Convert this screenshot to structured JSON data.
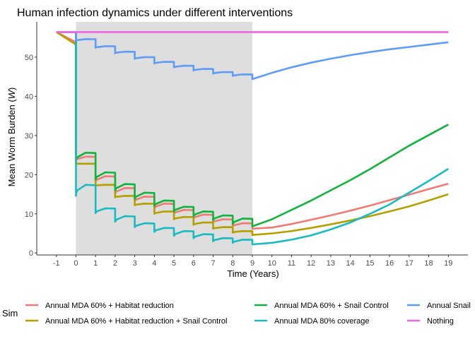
{
  "chart_data": {
    "type": "line",
    "title": "Human infection dynamics under different interventions",
    "xlabel": "Time (Years)",
    "ylabel": "Mean Worm Burden (W)",
    "ylabel_parts": {
      "prefix": "Mean Worm Burden (",
      "symbol": "W",
      "suffix": ")"
    },
    "xlim": [
      -2,
      20
    ],
    "ylim": [
      -0.5,
      59
    ],
    "x_ticks": [
      "-1",
      "0",
      "1",
      "2",
      "3",
      "4",
      "5",
      "6",
      "7",
      "8",
      "9",
      "10",
      "11",
      "12",
      "13",
      "14",
      "15",
      "16",
      "17",
      "18",
      "19"
    ],
    "y_ticks": [
      "0",
      "10",
      "20",
      "30",
      "40",
      "50"
    ],
    "shaded_region": {
      "x_start": 0,
      "x_end": 9,
      "color": "#dedede"
    },
    "grid": false,
    "legend_title": "Sim",
    "legend_position": "bottom",
    "baseline": 56.4,
    "series": [
      {
        "name": "Annual MDA 60% + Habitat reduction",
        "color": "#f07b72",
        "pre": [
          [
            -1,
            56.4
          ],
          [
            0,
            53.8
          ]
        ],
        "drop_to": 23.6,
        "yearly": [
          {
            "start": 23.6,
            "end": 24.6
          },
          {
            "start": 18.2,
            "end": 19.6
          },
          {
            "start": 15.2,
            "end": 16.6
          },
          {
            "start": 13.2,
            "end": 14.4
          },
          {
            "start": 11.4,
            "end": 12.6
          },
          {
            "start": 10.0,
            "end": 11.0
          },
          {
            "start": 8.8,
            "end": 9.8
          },
          {
            "start": 7.8,
            "end": 8.6
          },
          {
            "start": 6.8,
            "end": 7.6
          }
        ],
        "post": [
          [
            9,
            6.2
          ],
          [
            10,
            6.5
          ],
          [
            11,
            7.4
          ],
          [
            12,
            8.5
          ],
          [
            13,
            9.6
          ],
          [
            14,
            10.8
          ],
          [
            15,
            12.1
          ],
          [
            16,
            13.5
          ],
          [
            17,
            14.9
          ],
          [
            18,
            16.3
          ],
          [
            19,
            17.7
          ]
        ]
      },
      {
        "name": "Annual MDA 60% + Habitat reduction + Snail Control",
        "color": "#b5a000",
        "pre": [
          [
            -1,
            56.4
          ],
          [
            0,
            53.2
          ]
        ],
        "drop_to": 22.8,
        "yearly": [
          {
            "start": 22.8,
            "end": 22.8
          },
          {
            "start": 17.2,
            "end": 17.4
          },
          {
            "start": 14.2,
            "end": 14.6
          },
          {
            "start": 12.2,
            "end": 12.6
          },
          {
            "start": 10.0,
            "end": 10.6
          },
          {
            "start": 8.6,
            "end": 9.2
          },
          {
            "start": 7.2,
            "end": 7.8
          },
          {
            "start": 6.2,
            "end": 6.6
          },
          {
            "start": 5.2,
            "end": 5.6
          }
        ],
        "post": [
          [
            9,
            4.6
          ],
          [
            10,
            5.0
          ],
          [
            11,
            5.6
          ],
          [
            12,
            6.4
          ],
          [
            13,
            7.3
          ],
          [
            14,
            8.3
          ],
          [
            15,
            9.4
          ],
          [
            16,
            10.6
          ],
          [
            17,
            11.9
          ],
          [
            18,
            13.4
          ],
          [
            19,
            15.0
          ]
        ]
      },
      {
        "name": "Annual MDA 60% + Snail Control",
        "color": "#10b43c",
        "pre": [
          [
            -1,
            56.4
          ],
          [
            0,
            56.4
          ]
        ],
        "drop_to": 24.6,
        "yearly": [
          {
            "start": 23.8,
            "end": 25.6
          },
          {
            "start": 18.8,
            "end": 20.6
          },
          {
            "start": 16.0,
            "end": 17.6
          },
          {
            "start": 13.8,
            "end": 15.4
          },
          {
            "start": 12.0,
            "end": 13.4
          },
          {
            "start": 10.6,
            "end": 11.8
          },
          {
            "start": 9.4,
            "end": 10.6
          },
          {
            "start": 8.4,
            "end": 9.6
          },
          {
            "start": 7.4,
            "end": 8.8
          }
        ],
        "post": [
          [
            9,
            6.8
          ],
          [
            10,
            8.6
          ],
          [
            11,
            11.0
          ],
          [
            12,
            13.4
          ],
          [
            13,
            16.0
          ],
          [
            14,
            18.6
          ],
          [
            15,
            21.4
          ],
          [
            16,
            24.4
          ],
          [
            17,
            27.4
          ],
          [
            18,
            30.1
          ],
          [
            19,
            32.8
          ]
        ]
      },
      {
        "name": "Annual MDA 80% coverage",
        "color": "#18bcc0",
        "pre": [
          [
            -1,
            56.4
          ],
          [
            0,
            56.4
          ]
        ],
        "drop_to": 14.6,
        "yearly": [
          {
            "start": 15.2,
            "end": 17.4
          },
          {
            "start": 10.2,
            "end": 11.4
          },
          {
            "start": 8.0,
            "end": 9.4
          },
          {
            "start": 6.6,
            "end": 7.6
          },
          {
            "start": 5.4,
            "end": 6.4
          },
          {
            "start": 4.4,
            "end": 5.6
          },
          {
            "start": 3.8,
            "end": 4.8
          },
          {
            "start": 3.0,
            "end": 3.8
          },
          {
            "start": 2.6,
            "end": 3.4
          }
        ],
        "post": [
          [
            9,
            2.2
          ],
          [
            10,
            2.6
          ],
          [
            11,
            3.4
          ],
          [
            12,
            4.5
          ],
          [
            13,
            6.0
          ],
          [
            14,
            7.8
          ],
          [
            15,
            10.0
          ],
          [
            16,
            12.4
          ],
          [
            17,
            15.4
          ],
          [
            18,
            18.4
          ],
          [
            19,
            21.5
          ]
        ]
      },
      {
        "name": "Annual Snail",
        "color": "#5f9cf6",
        "pre": [
          [
            -1,
            56.4
          ],
          [
            0,
            56.4
          ]
        ],
        "drop_to": 54.6,
        "yearly": [
          {
            "start": 54.2,
            "end": 54.6
          },
          {
            "start": 52.4,
            "end": 52.8
          },
          {
            "start": 51.0,
            "end": 51.4
          },
          {
            "start": 49.6,
            "end": 50.0
          },
          {
            "start": 48.4,
            "end": 48.8
          },
          {
            "start": 47.4,
            "end": 47.8
          },
          {
            "start": 46.6,
            "end": 47.0
          },
          {
            "start": 45.8,
            "end": 46.2
          },
          {
            "start": 45.2,
            "end": 45.6
          }
        ],
        "post": [
          [
            9,
            44.4
          ],
          [
            10,
            46.0
          ],
          [
            11,
            47.4
          ],
          [
            12,
            48.6
          ],
          [
            13,
            49.6
          ],
          [
            14,
            50.5
          ],
          [
            15,
            51.3
          ],
          [
            16,
            52.0
          ],
          [
            17,
            52.6
          ],
          [
            18,
            53.2
          ],
          [
            19,
            53.8
          ]
        ]
      },
      {
        "name": "Nothing",
        "color": "#f264e2",
        "pre": [
          [
            -1,
            56.4
          ],
          [
            19,
            56.4
          ]
        ]
      }
    ]
  }
}
